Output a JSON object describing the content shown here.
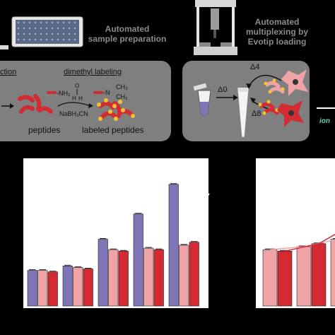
{
  "top": {
    "step1_line1": "Automated",
    "step1_line2": "sample preparation",
    "step2_line1": "Automated",
    "step2_line2": "multiplexing by",
    "step2_line3": "Evotip loading"
  },
  "left_panel": {
    "digestion_fragment": "ction",
    "dimethyl_label": "dimethyl labeling",
    "nh2": "-NH₂",
    "reagent": "NaBH₃CN",
    "peptides": "peptides",
    "labeled_peptides": "labeled peptides",
    "ch3_top": "CH₃",
    "ch3_bottom": "CH₃"
  },
  "right_panel": {
    "delta4": "Δ4",
    "delta0": "Δ0",
    "delta8": "Δ8"
  },
  "edge_text": "ion",
  "chart_data": [
    {
      "type": "bar",
      "series": [
        {
          "values": [
            24,
            27,
            45,
            62,
            82
          ],
          "color": "#7e74b6"
        },
        {
          "values": [
            24,
            26,
            38,
            39,
            41
          ],
          "color": "#f0a3a6"
        },
        {
          "values": [
            23,
            25,
            37,
            38,
            43
          ],
          "color": "#d42a32"
        }
      ],
      "title": "",
      "xlabel": "",
      "ylabel": ""
    },
    {
      "type": "bar",
      "series": [
        {
          "values": [
            38,
            40,
            45
          ],
          "color": "#f0a3a6"
        },
        {
          "values": [
            37,
            42,
            55
          ],
          "color": "#d42a32"
        }
      ],
      "title": "",
      "xlabel": "",
      "ylabel": ""
    }
  ],
  "colors": {
    "purple": "#7e74b6",
    "pink": "#f0a3a6",
    "red": "#d42a32",
    "panel": "#7f7f7f"
  }
}
